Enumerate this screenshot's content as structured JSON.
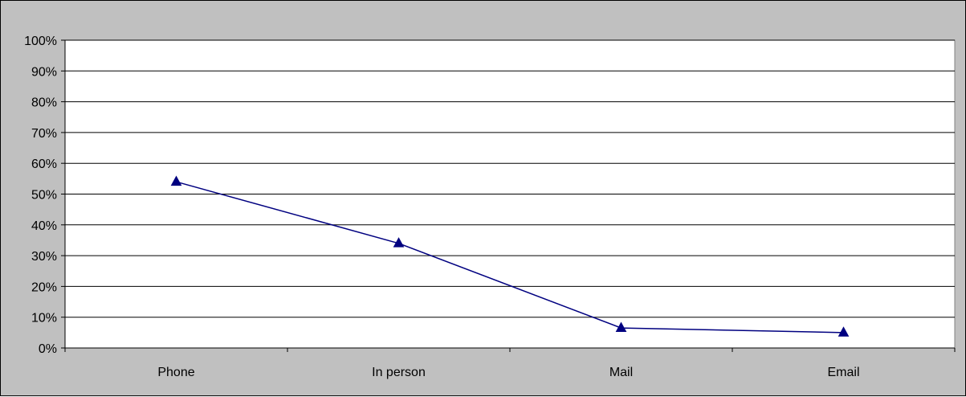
{
  "chart_data": {
    "type": "line",
    "categories": [
      "Phone",
      "In person",
      "Mail",
      "Email"
    ],
    "series": [
      {
        "values": [
          54,
          34,
          6.5,
          5
        ],
        "color": "#000080",
        "marker": "triangle"
      }
    ],
    "y_tick_labels": [
      "0%",
      "10%",
      "20%",
      "30%",
      "40%",
      "50%",
      "60%",
      "70%",
      "80%",
      "90%",
      "100%"
    ],
    "ylim": [
      0,
      100
    ],
    "y_unit": "%",
    "grid": true,
    "legend": "none",
    "plot_background": "#ffffff",
    "chart_background": "#c0c0c0"
  }
}
